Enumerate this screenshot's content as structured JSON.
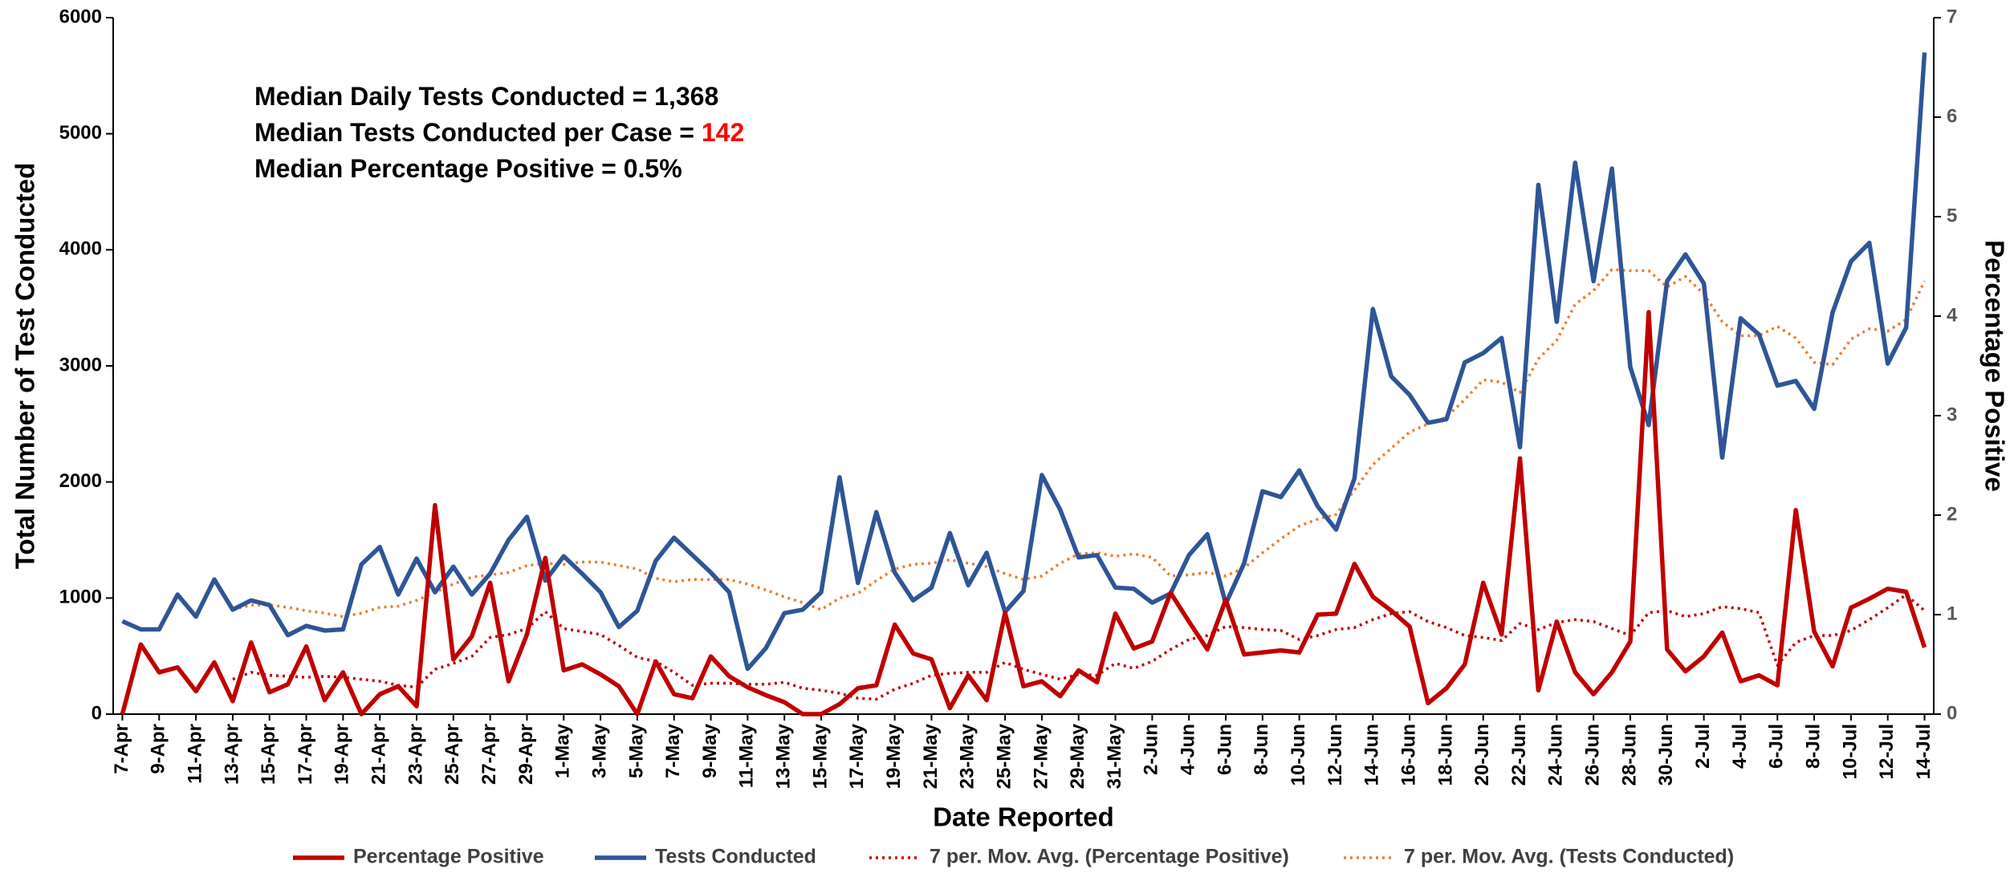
{
  "chart_data": {
    "type": "line",
    "x_label": "Date Reported",
    "y_label": "Total Number of Test Conducted",
    "y2_label": "Percentage Positive",
    "annotations": [
      [
        "Median Daily Tests Conducted = 1,368"
      ],
      [
        "Median Tests Conducted per Case = ",
        "142"
      ],
      [
        "Median Percentage Positive = 0.5%"
      ]
    ],
    "highlight_color": "#ff0000",
    "grid": false,
    "legend": "bottom",
    "ylim": [
      0,
      6000
    ],
    "yticks": [
      0,
      1000,
      2000,
      3000,
      4000,
      5000,
      6000
    ],
    "y2lim": [
      0,
      7
    ],
    "y2ticks": [
      0,
      1,
      2,
      3,
      4,
      5,
      6,
      7
    ],
    "categories": [
      "7-Apr",
      null,
      "9-Apr",
      null,
      "11-Apr",
      null,
      "13-Apr",
      null,
      "15-Apr",
      null,
      "17-Apr",
      null,
      "19-Apr",
      null,
      "21-Apr",
      null,
      "23-Apr",
      null,
      "25-Apr",
      null,
      "27-Apr",
      null,
      "29-Apr",
      null,
      "1-May",
      null,
      "3-May",
      null,
      "5-May",
      null,
      "7-May",
      null,
      "9-May",
      null,
      "11-May",
      null,
      "13-May",
      null,
      "15-May",
      null,
      "17-May",
      null,
      "19-May",
      null,
      "21-May",
      null,
      "23-May",
      null,
      "25-May",
      null,
      "27-May",
      null,
      "29-May",
      null,
      "31-May",
      null,
      "2-Jun",
      null,
      "4-Jun",
      null,
      "6-Jun",
      null,
      "8-Jun",
      null,
      "10-Jun",
      null,
      "12-Jun",
      null,
      "14-Jun",
      null,
      "16-Jun",
      null,
      "18-Jun",
      null,
      "20-Jun",
      null,
      "22-Jun",
      null,
      "24-Jun",
      null,
      "26-Jun",
      null,
      "28-Jun",
      null,
      "30-Jun",
      null,
      "2-Jul",
      null,
      "4-Jul",
      null,
      "6-Jul",
      null,
      "8-Jul",
      null,
      "10-Jul",
      null,
      "12-Jul",
      null,
      "14-Jul"
    ],
    "series": [
      {
        "name": "Percentage Positive",
        "color": "#c00000",
        "style": "solid",
        "axis": "y2",
        "values": [
          0,
          0.7,
          0.42,
          0.47,
          0.23,
          0.52,
          0.13,
          0.72,
          0.22,
          0.3,
          0.68,
          0.14,
          0.42,
          0,
          0.2,
          0.28,
          0.08,
          2.1,
          0.55,
          0.78,
          1.32,
          0.33,
          0.8,
          1.57,
          0.44,
          0.5,
          0.4,
          0.28,
          0,
          0.53,
          0.2,
          0.16,
          0.58,
          0.38,
          0.27,
          0.19,
          0.12,
          0,
          0,
          0.1,
          0.26,
          0.29,
          0.9,
          0.61,
          0.55,
          0.06,
          0.39,
          0.14,
          1.02,
          0.28,
          0.33,
          0.18,
          0.44,
          0.32,
          1.01,
          0.66,
          0.73,
          1.22,
          0.93,
          0.65,
          1.15,
          0.6,
          0.62,
          0.64,
          0.62,
          1.0,
          1.01,
          1.51,
          1.18,
          1.04,
          0.88,
          0.11,
          0.26,
          0.5,
          1.32,
          0.8,
          2.57,
          0.24,
          0.93,
          0.42,
          0.2,
          0.42,
          0.73,
          4.04,
          0.65,
          0.43,
          0.58,
          0.82,
          0.33,
          0.39,
          0.29,
          2.05,
          0.83,
          0.48,
          1.07,
          1.16,
          1.26,
          1.23,
          0.67
        ]
      },
      {
        "name": "Tests Conducted",
        "color": "#2f5597",
        "style": "solid",
        "axis": "y",
        "values": [
          800,
          730,
          730,
          1030,
          840,
          1160,
          900,
          980,
          940,
          680,
          760,
          720,
          730,
          1290,
          1440,
          1030,
          1340,
          1050,
          1270,
          1030,
          1210,
          1500,
          1700,
          1150,
          1360,
          1210,
          1050,
          750,
          890,
          1320,
          1520,
          1370,
          1220,
          1050,
          390,
          570,
          870,
          900,
          1050,
          2040,
          1130,
          1740,
          1220,
          980,
          1090,
          1560,
          1110,
          1390,
          880,
          1060,
          2060,
          1760,
          1350,
          1370,
          1090,
          1080,
          960,
          1040,
          1370,
          1550,
          950,
          1300,
          1920,
          1870,
          2100,
          1790,
          1590,
          2030,
          3490,
          2910,
          2750,
          2510,
          2540,
          3030,
          3110,
          3240,
          2300,
          4560,
          3380,
          4750,
          3730,
          4700,
          2990,
          2490,
          3730,
          3960,
          3710,
          2210,
          3410,
          3270,
          2830,
          2870,
          2630,
          3460,
          3900,
          4060,
          3020,
          3330,
          5700
        ]
      },
      {
        "name": "7 per. Mov. Avg. (Percentage Positive)",
        "color": "#c00000",
        "style": "dotted",
        "axis": "y2",
        "values": [
          null,
          null,
          null,
          null,
          null,
          null,
          0.35,
          0.42,
          0.39,
          0.38,
          0.37,
          0.38,
          0.37,
          0.35,
          0.33,
          0.29,
          0.27,
          0.45,
          0.51,
          0.58,
          0.77,
          0.8,
          0.86,
          1.03,
          0.86,
          0.83,
          0.8,
          0.69,
          0.57,
          0.53,
          0.42,
          0.29,
          0.31,
          0.31,
          0.3,
          0.3,
          0.32,
          0.26,
          0.24,
          0.21,
          0.16,
          0.15,
          0.25,
          0.31,
          0.39,
          0.41,
          0.42,
          0.42,
          0.52,
          0.45,
          0.4,
          0.35,
          0.4,
          0.39,
          0.51,
          0.46,
          0.53,
          0.65,
          0.75,
          0.79,
          0.88,
          0.87,
          0.85,
          0.84,
          0.75,
          0.79,
          0.85,
          0.87,
          0.95,
          1.01,
          1.03,
          0.93,
          0.87,
          0.79,
          0.77,
          0.74,
          0.91,
          0.85,
          0.92,
          0.95,
          0.93,
          0.86,
          0.79,
          1.02,
          1.04,
          0.98,
          1.01,
          1.08,
          1.06,
          1.02,
          0.49,
          0.72,
          0.79,
          0.79,
          0.84,
          0.95,
          1.07,
          1.2,
          1.04
        ]
      },
      {
        "name": "7 per. Mov. Avg. (Tests Conducted)",
        "color": "#ed7d31",
        "style": "dotted",
        "axis": "y",
        "values": [
          null,
          null,
          null,
          null,
          null,
          null,
          900,
          940,
          940,
          920,
          890,
          870,
          840,
          870,
          920,
          930,
          980,
          1050,
          1120,
          1180,
          1200,
          1220,
          1280,
          1300,
          1290,
          1310,
          1310,
          1280,
          1250,
          1170,
          1140,
          1160,
          1160,
          1160,
          1120,
          1070,
          1010,
          960,
          900,
          1000,
          1040,
          1150,
          1250,
          1290,
          1300,
          1330,
          1300,
          1270,
          1210,
          1160,
          1190,
          1300,
          1380,
          1390,
          1360,
          1380,
          1350,
          1190,
          1200,
          1220,
          1190,
          1260,
          1390,
          1510,
          1620,
          1680,
          1720,
          1930,
          2150,
          2290,
          2430,
          2500,
          2560,
          2710,
          2880,
          2860,
          2770,
          3060,
          3220,
          3530,
          3650,
          3830,
          3820,
          3820,
          3680,
          3770,
          3620,
          3380,
          3260,
          3260,
          3340,
          3240,
          3030,
          3010,
          3230,
          3320,
          3300,
          3400,
          3730
        ]
      }
    ]
  }
}
